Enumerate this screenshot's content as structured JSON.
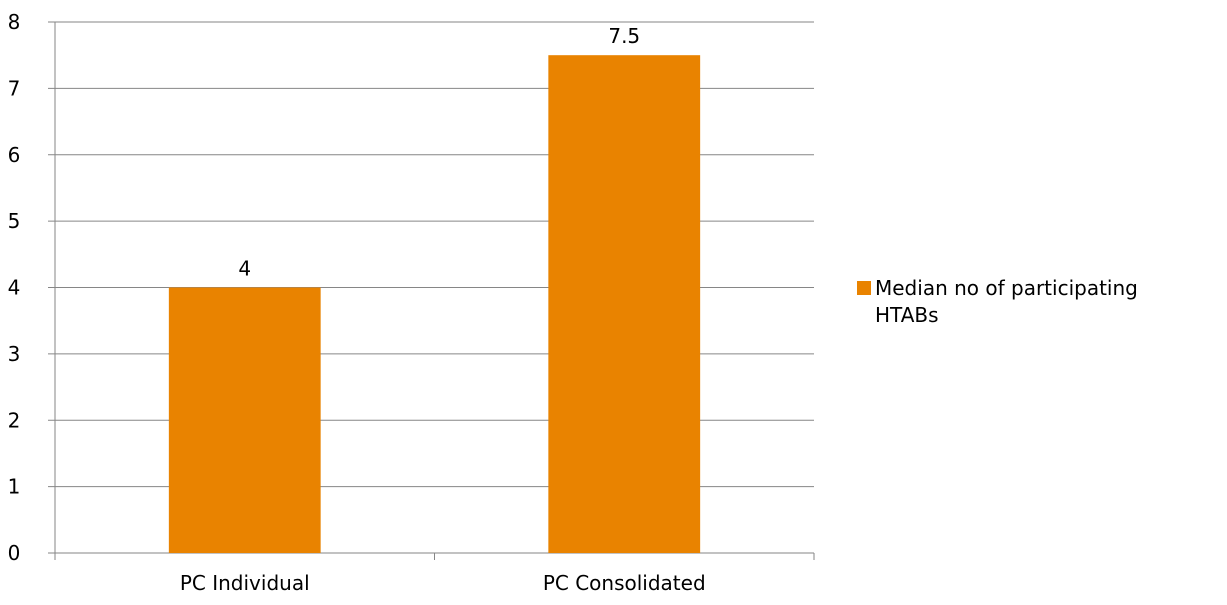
{
  "chart_data": {
    "type": "bar",
    "categories": [
      "PC Individual",
      "PC Consolidated"
    ],
    "series": [
      {
        "name": "Median no of participating HTABs",
        "values": [
          4,
          7.5
        ],
        "color": "#E98300"
      }
    ],
    "data_labels": [
      "4",
      "7.5"
    ],
    "ylim": [
      0,
      8
    ],
    "y_ticks": [
      "0",
      "1",
      "2",
      "3",
      "4",
      "5",
      "6",
      "7",
      "8"
    ],
    "grid": true,
    "legend": {
      "position": "right",
      "lines": [
        "Median no of participating",
        "HTABs"
      ]
    },
    "title": "",
    "xlabel": "",
    "ylabel": ""
  }
}
